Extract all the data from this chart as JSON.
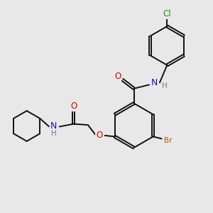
{
  "bg_color": "#e8e8e8",
  "bond_color": "#111111",
  "bond_lw": 1.4,
  "dbo": 0.055,
  "colors": {
    "O": "#dd0000",
    "N": "#1111cc",
    "H": "#777777",
    "Br": "#bb5500",
    "Cl": "#119911"
  },
  "fs": 7.5,
  "fig_bg": "#e8e8e8"
}
